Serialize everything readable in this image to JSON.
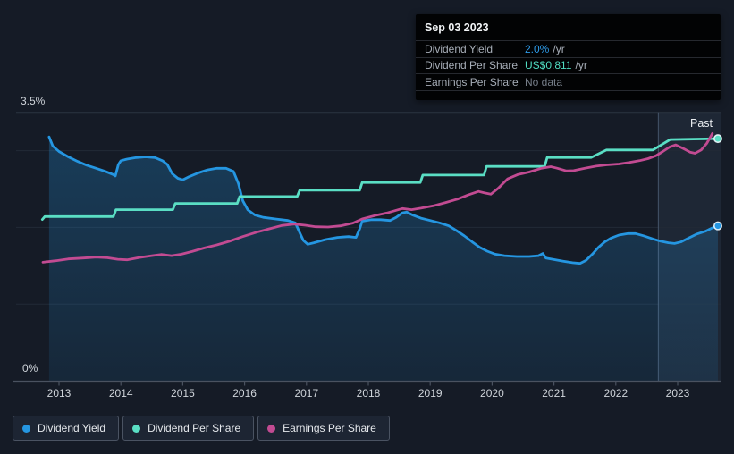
{
  "axis": {
    "y_top_label": "3.5%",
    "y_bottom_label": "0%",
    "past_label": "Past"
  },
  "tooltip": {
    "date": "Sep 03 2023",
    "rows": [
      {
        "label": "Dividend Yield",
        "value": "2.0%",
        "suffix": "/yr",
        "color": "#2E9BE8"
      },
      {
        "label": "Dividend Per Share",
        "value": "US$0.811",
        "suffix": "/yr",
        "color": "#50DCC2"
      },
      {
        "label": "Earnings Per Share",
        "value": "No data",
        "suffix": "",
        "color": "#757D88"
      }
    ]
  },
  "legend": {
    "items": [
      {
        "label": "Dividend Yield",
        "color": "#2596E1"
      },
      {
        "label": "Dividend Per Share",
        "color": "#5ADEC4"
      },
      {
        "label": "Earnings Per Share",
        "color": "#C24B92"
      }
    ]
  },
  "colors": {
    "background": "#151B26",
    "gridline_minor": "#222A36",
    "gridline_top": "#2B3440",
    "axis_line": "#4A5260",
    "tick_text": "#CFD4DA",
    "past_band": "rgba(125,165,215,0.09)",
    "past_divider": "rgba(160,190,225,0.30)",
    "area_fill_top": "rgba(35,148,223,0.28)",
    "area_fill_bottom": "rgba(35,148,223,0.10)",
    "dot_ring": "rgba(240,250,255,0.9)"
  },
  "chart_data": {
    "type": "line",
    "title": "Dividend Yield, Dividend Per Share and Earnings Per Share history 2013-2023",
    "x_axis": {
      "ticks": [
        2013,
        2014,
        2015,
        2016,
        2017,
        2018,
        2019,
        2020,
        2021,
        2022,
        2023
      ],
      "range": [
        2012.3,
        2023.95
      ]
    },
    "y_axis_percent": {
      "min": 0,
      "max": 3.5,
      "gridlines_pct": [
        1,
        2,
        3
      ],
      "top_label_pct": 3.5
    },
    "y_axis_dollars": {
      "min": 0,
      "max": 0.9
    },
    "past_marker_year": 2022.68,
    "grid": "horizontal-only",
    "legend_position": "bottom-left",
    "series": [
      {
        "name": "Dividend Yield",
        "unit": "%",
        "axis": "percent",
        "color": "#2596E1",
        "area": true,
        "end_dot": true,
        "end_value_label": "2.0% /yr",
        "points": [
          [
            2012.84,
            3.18
          ],
          [
            2012.9,
            3.06
          ],
          [
            2013.0,
            2.99
          ],
          [
            2013.15,
            2.92
          ],
          [
            2013.3,
            2.86
          ],
          [
            2013.45,
            2.81
          ],
          [
            2013.6,
            2.77
          ],
          [
            2013.75,
            2.73
          ],
          [
            2013.87,
            2.69
          ],
          [
            2013.91,
            2.67
          ],
          [
            2013.96,
            2.82
          ],
          [
            2014.0,
            2.87
          ],
          [
            2014.1,
            2.89
          ],
          [
            2014.25,
            2.91
          ],
          [
            2014.4,
            2.92
          ],
          [
            2014.55,
            2.91
          ],
          [
            2014.67,
            2.87
          ],
          [
            2014.75,
            2.82
          ],
          [
            2014.83,
            2.7
          ],
          [
            2014.92,
            2.64
          ],
          [
            2015.0,
            2.62
          ],
          [
            2015.1,
            2.66
          ],
          [
            2015.25,
            2.71
          ],
          [
            2015.4,
            2.75
          ],
          [
            2015.55,
            2.77
          ],
          [
            2015.7,
            2.77
          ],
          [
            2015.82,
            2.73
          ],
          [
            2015.9,
            2.57
          ],
          [
            2015.97,
            2.35
          ],
          [
            2016.05,
            2.23
          ],
          [
            2016.17,
            2.16
          ],
          [
            2016.3,
            2.13
          ],
          [
            2016.5,
            2.11
          ],
          [
            2016.7,
            2.09
          ],
          [
            2016.82,
            2.06
          ],
          [
            2016.88,
            1.95
          ],
          [
            2016.95,
            1.83
          ],
          [
            2017.02,
            1.78
          ],
          [
            2017.12,
            1.8
          ],
          [
            2017.3,
            1.84
          ],
          [
            2017.5,
            1.87
          ],
          [
            2017.68,
            1.88
          ],
          [
            2017.8,
            1.87
          ],
          [
            2017.86,
            1.98
          ],
          [
            2017.9,
            2.08
          ],
          [
            2018.05,
            2.1
          ],
          [
            2018.2,
            2.1
          ],
          [
            2018.35,
            2.09
          ],
          [
            2018.45,
            2.13
          ],
          [
            2018.55,
            2.19
          ],
          [
            2018.62,
            2.2
          ],
          [
            2018.72,
            2.16
          ],
          [
            2018.85,
            2.12
          ],
          [
            2019.0,
            2.09
          ],
          [
            2019.15,
            2.06
          ],
          [
            2019.3,
            2.02
          ],
          [
            2019.42,
            1.96
          ],
          [
            2019.55,
            1.89
          ],
          [
            2019.68,
            1.81
          ],
          [
            2019.8,
            1.74
          ],
          [
            2019.92,
            1.69
          ],
          [
            2020.05,
            1.65
          ],
          [
            2020.2,
            1.63
          ],
          [
            2020.4,
            1.62
          ],
          [
            2020.6,
            1.62
          ],
          [
            2020.75,
            1.63
          ],
          [
            2020.82,
            1.66
          ],
          [
            2020.87,
            1.6
          ],
          [
            2021.0,
            1.58
          ],
          [
            2021.15,
            1.56
          ],
          [
            2021.3,
            1.54
          ],
          [
            2021.42,
            1.53
          ],
          [
            2021.52,
            1.57
          ],
          [
            2021.62,
            1.65
          ],
          [
            2021.72,
            1.74
          ],
          [
            2021.82,
            1.81
          ],
          [
            2021.92,
            1.86
          ],
          [
            2022.05,
            1.9
          ],
          [
            2022.2,
            1.92
          ],
          [
            2022.32,
            1.92
          ],
          [
            2022.45,
            1.89
          ],
          [
            2022.6,
            1.85
          ],
          [
            2022.72,
            1.82
          ],
          [
            2022.85,
            1.8
          ],
          [
            2022.95,
            1.79
          ],
          [
            2023.05,
            1.81
          ],
          [
            2023.15,
            1.85
          ],
          [
            2023.3,
            1.91
          ],
          [
            2023.45,
            1.95
          ],
          [
            2023.55,
            1.99
          ],
          [
            2023.65,
            2.02
          ]
        ]
      },
      {
        "name": "Dividend Per Share",
        "unit": "US$",
        "axis": "dollars",
        "color": "#5ADEC4",
        "area": false,
        "end_dot": true,
        "end_value_label": "US$0.811 /yr",
        "points": [
          [
            2012.73,
            0.54
          ],
          [
            2012.77,
            0.55
          ],
          [
            2013.88,
            0.55
          ],
          [
            2013.92,
            0.573
          ],
          [
            2014.84,
            0.573
          ],
          [
            2014.88,
            0.594
          ],
          [
            2015.88,
            0.594
          ],
          [
            2015.92,
            0.617
          ],
          [
            2016.85,
            0.617
          ],
          [
            2016.89,
            0.638
          ],
          [
            2017.86,
            0.638
          ],
          [
            2017.9,
            0.664
          ],
          [
            2018.84,
            0.664
          ],
          [
            2018.88,
            0.689
          ],
          [
            2019.87,
            0.689
          ],
          [
            2019.91,
            0.718
          ],
          [
            2020.85,
            0.718
          ],
          [
            2020.89,
            0.748
          ],
          [
            2021.6,
            0.748
          ],
          [
            2021.85,
            0.773
          ],
          [
            2022.6,
            0.773
          ],
          [
            2022.88,
            0.808
          ],
          [
            2023.65,
            0.811
          ]
        ]
      },
      {
        "name": "Earnings Per Share",
        "unit": "US$",
        "axis": "dollars",
        "color": "#C24B92",
        "area": false,
        "end_dot": false,
        "end_value_label": "No data",
        "points": [
          [
            2012.74,
            0.397
          ],
          [
            2012.95,
            0.402
          ],
          [
            2013.15,
            0.408
          ],
          [
            2013.4,
            0.411
          ],
          [
            2013.6,
            0.414
          ],
          [
            2013.78,
            0.412
          ],
          [
            2013.95,
            0.407
          ],
          [
            2014.1,
            0.405
          ],
          [
            2014.3,
            0.413
          ],
          [
            2014.5,
            0.419
          ],
          [
            2014.65,
            0.423
          ],
          [
            2014.82,
            0.419
          ],
          [
            2014.98,
            0.424
          ],
          [
            2015.15,
            0.433
          ],
          [
            2015.35,
            0.445
          ],
          [
            2015.55,
            0.455
          ],
          [
            2015.75,
            0.467
          ],
          [
            2015.97,
            0.483
          ],
          [
            2016.2,
            0.498
          ],
          [
            2016.4,
            0.509
          ],
          [
            2016.6,
            0.52
          ],
          [
            2016.8,
            0.525
          ],
          [
            2016.98,
            0.521
          ],
          [
            2017.15,
            0.516
          ],
          [
            2017.35,
            0.515
          ],
          [
            2017.55,
            0.519
          ],
          [
            2017.75,
            0.528
          ],
          [
            2017.9,
            0.542
          ],
          [
            2018.1,
            0.553
          ],
          [
            2018.3,
            0.562
          ],
          [
            2018.45,
            0.571
          ],
          [
            2018.55,
            0.577
          ],
          [
            2018.7,
            0.573
          ],
          [
            2018.85,
            0.578
          ],
          [
            2019.05,
            0.586
          ],
          [
            2019.25,
            0.597
          ],
          [
            2019.45,
            0.609
          ],
          [
            2019.62,
            0.623
          ],
          [
            2019.78,
            0.634
          ],
          [
            2019.88,
            0.629
          ],
          [
            2019.98,
            0.625
          ],
          [
            2020.1,
            0.645
          ],
          [
            2020.25,
            0.676
          ],
          [
            2020.42,
            0.691
          ],
          [
            2020.6,
            0.699
          ],
          [
            2020.8,
            0.712
          ],
          [
            2020.95,
            0.717
          ],
          [
            2021.05,
            0.712
          ],
          [
            2021.2,
            0.703
          ],
          [
            2021.32,
            0.704
          ],
          [
            2021.5,
            0.712
          ],
          [
            2021.68,
            0.719
          ],
          [
            2021.85,
            0.723
          ],
          [
            2022.05,
            0.726
          ],
          [
            2022.22,
            0.731
          ],
          [
            2022.38,
            0.737
          ],
          [
            2022.52,
            0.744
          ],
          [
            2022.65,
            0.754
          ],
          [
            2022.76,
            0.768
          ],
          [
            2022.87,
            0.783
          ],
          [
            2022.97,
            0.79
          ],
          [
            2023.1,
            0.777
          ],
          [
            2023.2,
            0.766
          ],
          [
            2023.28,
            0.762
          ],
          [
            2023.38,
            0.773
          ],
          [
            2023.47,
            0.795
          ],
          [
            2023.56,
            0.828
          ]
        ]
      }
    ]
  }
}
